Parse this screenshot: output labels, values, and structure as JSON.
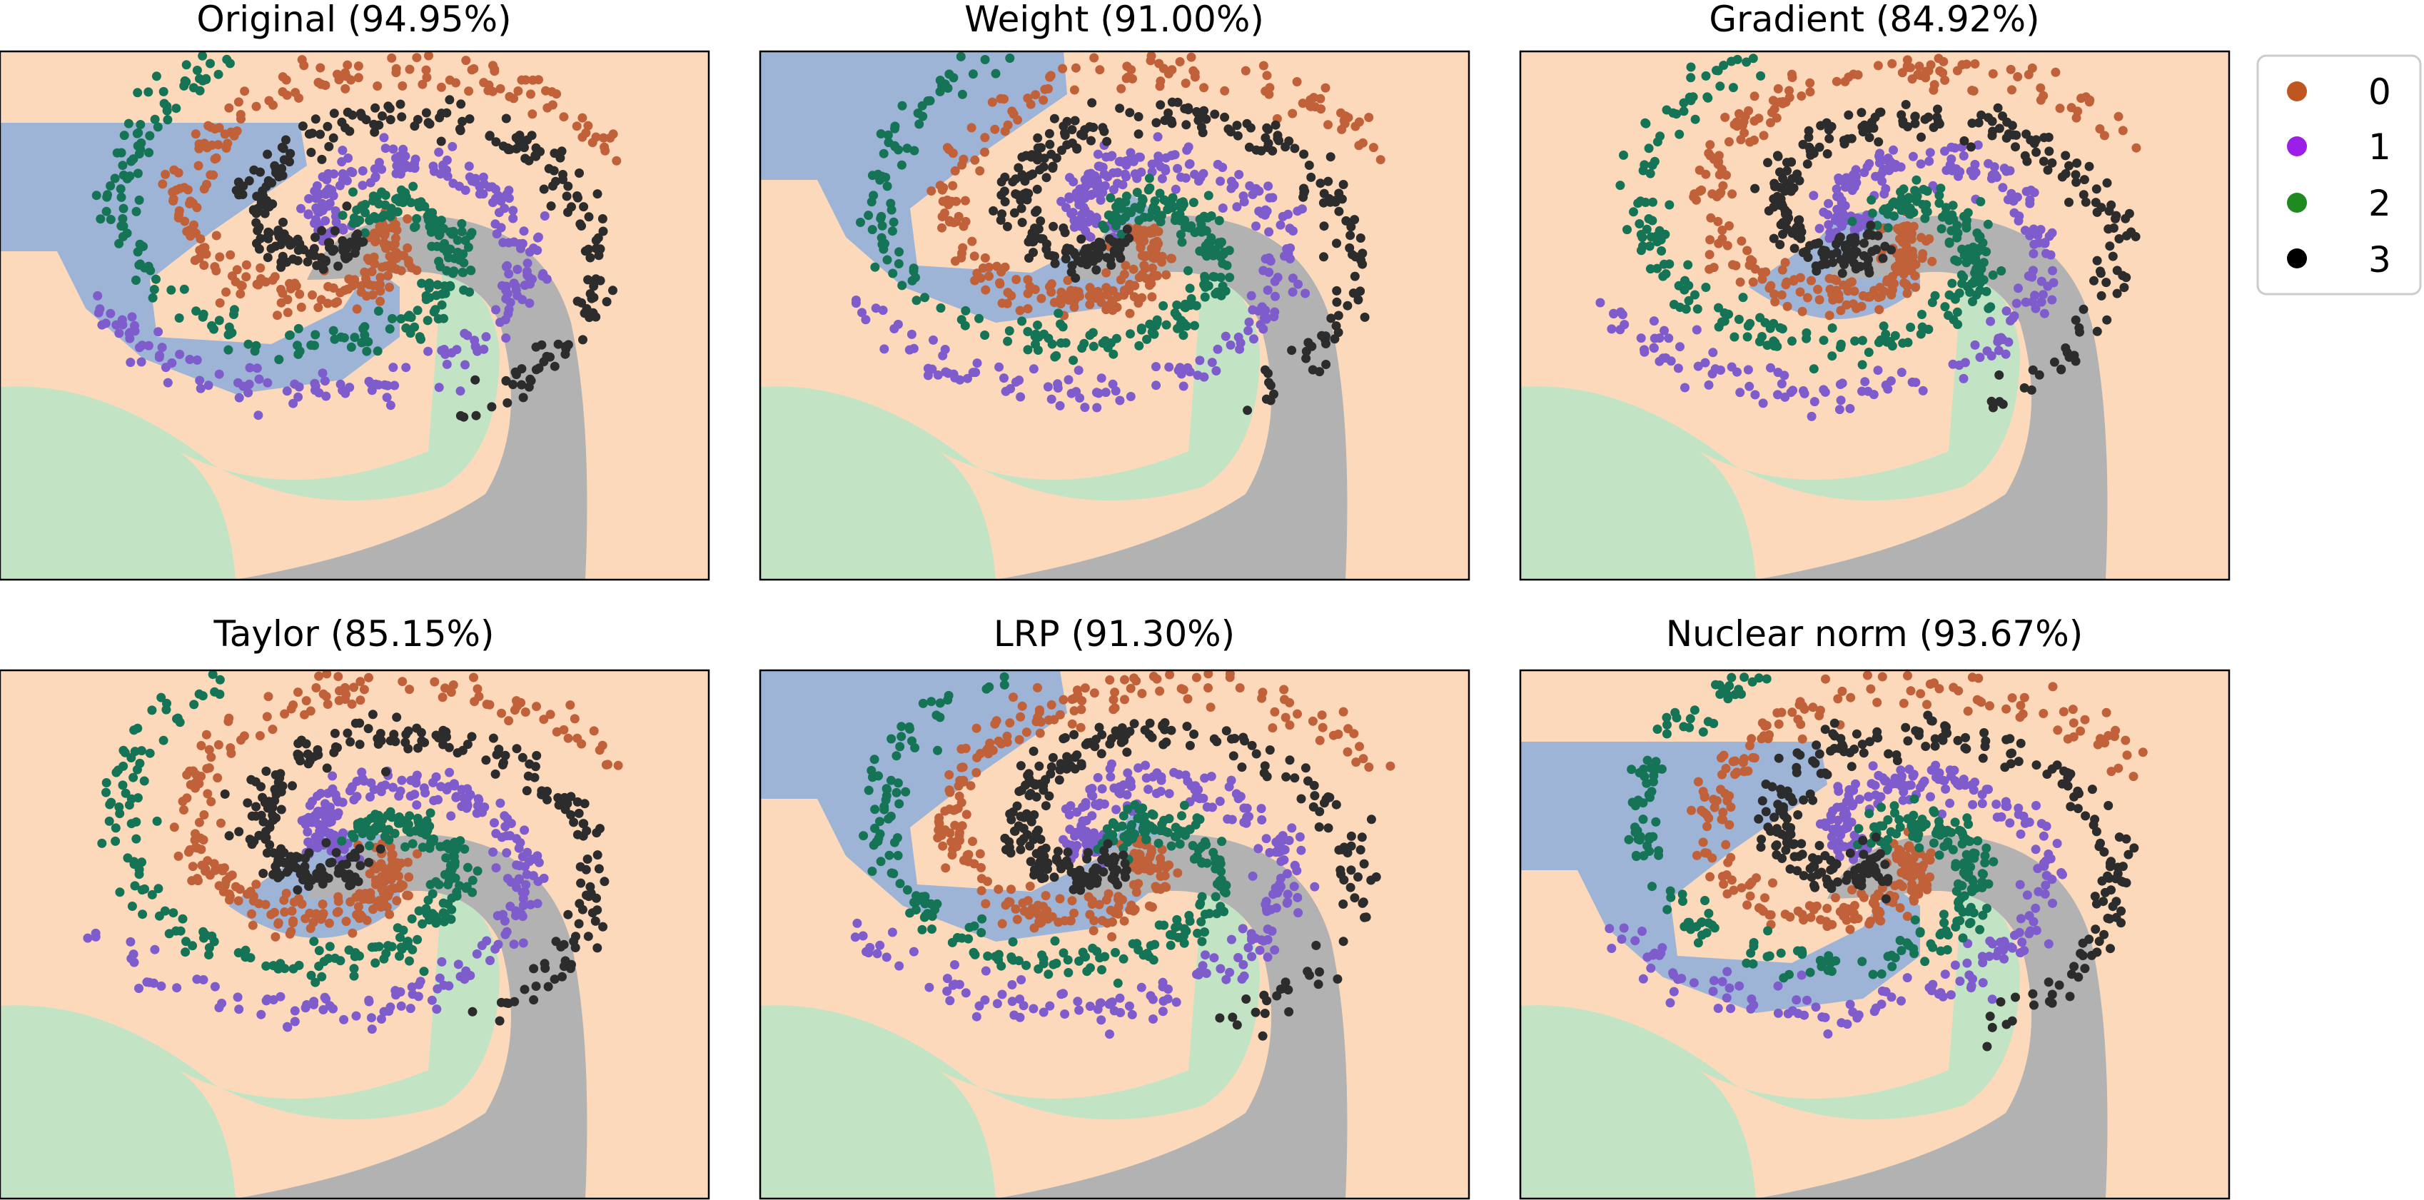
{
  "colors": {
    "region": [
      "#fdd9bc",
      "#9db4d6",
      "#c2e4c4",
      "#b2b2b2"
    ],
    "point": [
      "#c0613a",
      "#7e5ccc",
      "#157356",
      "#2c2c2c"
    ]
  },
  "legend": {
    "entries": [
      {
        "label": "0",
        "color": "#c0561f"
      },
      {
        "label": "1",
        "color": "#9b1fe8"
      },
      {
        "label": "2",
        "color": "#1f8a1f"
      },
      {
        "label": "3",
        "color": "#000000"
      }
    ],
    "placement": "upper-right, outside plots"
  },
  "chart_data": [
    {
      "type": "scatter",
      "title": "Original (94.95%)",
      "classes": [
        "0",
        "1",
        "2",
        "3"
      ],
      "decision_regions": true,
      "xlabel": "",
      "ylabel": "",
      "axes_ticks": false
    },
    {
      "type": "scatter",
      "title": "Weight (91.00%)",
      "classes": [
        "0",
        "1",
        "2",
        "3"
      ],
      "decision_regions": true,
      "xlabel": "",
      "ylabel": "",
      "axes_ticks": false
    },
    {
      "type": "scatter",
      "title": "Gradient (84.92%)",
      "classes": [
        "0",
        "1",
        "2",
        "3"
      ],
      "decision_regions": true,
      "xlabel": "",
      "ylabel": "",
      "axes_ticks": false
    },
    {
      "type": "scatter",
      "title": "Taylor (85.15%)",
      "classes": [
        "0",
        "1",
        "2",
        "3"
      ],
      "decision_regions": true,
      "xlabel": "",
      "ylabel": "",
      "axes_ticks": false
    },
    {
      "type": "scatter",
      "title": "LRP (91.30%)",
      "classes": [
        "0",
        "1",
        "2",
        "3"
      ],
      "decision_regions": true,
      "xlabel": "",
      "ylabel": "",
      "axes_ticks": false
    },
    {
      "type": "scatter",
      "title": "Nuclear norm (93.67%)",
      "classes": [
        "0",
        "1",
        "2",
        "3"
      ],
      "decision_regions": true,
      "xlabel": "",
      "ylabel": "",
      "axes_ticks": false
    }
  ]
}
